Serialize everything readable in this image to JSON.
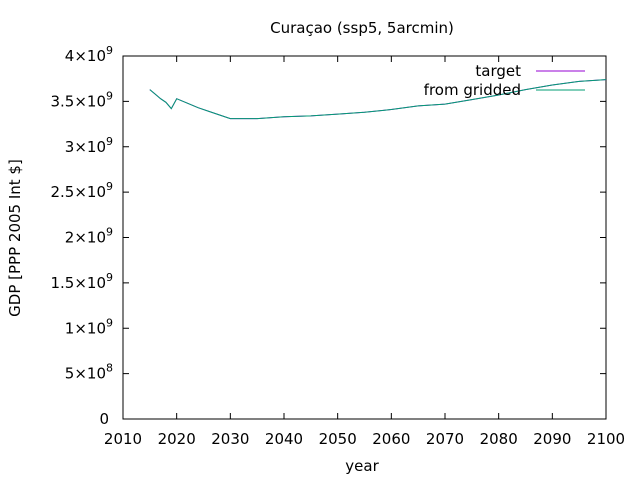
{
  "chart_data": {
    "type": "line",
    "title": "Curaçao (ssp5, 5arcmin)",
    "xlabel": "year",
    "ylabel": "GDP [PPP 2005 Int $]",
    "xlim": [
      2010,
      2100
    ],
    "ylim": [
      0,
      4000000000
    ],
    "x_ticks": [
      "2010",
      "2020",
      "2030",
      "2040",
      "2050",
      "2060",
      "2070",
      "2080",
      "2090",
      "2100"
    ],
    "y_ticks": [
      {
        "value": 0,
        "mantissa": "0",
        "exp": ""
      },
      {
        "value": 500000000,
        "mantissa": "5×10",
        "exp": "8"
      },
      {
        "value": 1000000000,
        "mantissa": "1×10",
        "exp": "9"
      },
      {
        "value": 1500000000,
        "mantissa": "1.5×10",
        "exp": "9"
      },
      {
        "value": 2000000000,
        "mantissa": "2×10",
        "exp": "9"
      },
      {
        "value": 2500000000,
        "mantissa": "2.5×10",
        "exp": "9"
      },
      {
        "value": 3000000000,
        "mantissa": "3×10",
        "exp": "9"
      },
      {
        "value": 3500000000,
        "mantissa": "3.5×10",
        "exp": "9"
      },
      {
        "value": 4000000000,
        "mantissa": "4×10",
        "exp": "9"
      }
    ],
    "grid": false,
    "legend_position": "top-right",
    "series": [
      {
        "name": "target",
        "color": "#9400d3",
        "x": [
          2015,
          2016,
          2017,
          2018,
          2019,
          2020,
          2022,
          2024,
          2026,
          2028,
          2030,
          2035,
          2040,
          2045,
          2050,
          2055,
          2060,
          2065,
          2070,
          2075,
          2080,
          2085,
          2090,
          2095,
          2100
        ],
        "y": [
          3630000000,
          3580000000,
          3530000000,
          3490000000,
          3420000000,
          3530000000,
          3480000000,
          3430000000,
          3390000000,
          3350000000,
          3310000000,
          3310000000,
          3330000000,
          3340000000,
          3360000000,
          3380000000,
          3410000000,
          3450000000,
          3470000000,
          3520000000,
          3570000000,
          3630000000,
          3680000000,
          3720000000,
          3740000000
        ]
      },
      {
        "name": "from gridded",
        "color": "#009e73",
        "x": [
          2015,
          2016,
          2017,
          2018,
          2019,
          2020,
          2022,
          2024,
          2026,
          2028,
          2030,
          2035,
          2040,
          2045,
          2050,
          2055,
          2060,
          2065,
          2070,
          2075,
          2080,
          2085,
          2090,
          2095,
          2100
        ],
        "y": [
          3630000000,
          3580000000,
          3530000000,
          3490000000,
          3420000000,
          3530000000,
          3480000000,
          3430000000,
          3390000000,
          3350000000,
          3310000000,
          3310000000,
          3330000000,
          3340000000,
          3360000000,
          3380000000,
          3410000000,
          3450000000,
          3470000000,
          3520000000,
          3570000000,
          3630000000,
          3680000000,
          3720000000,
          3740000000
        ]
      }
    ]
  }
}
